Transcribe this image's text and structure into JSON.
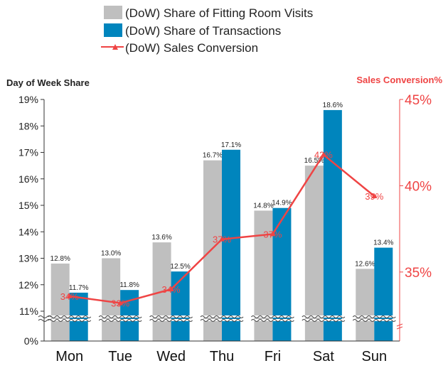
{
  "chart_data": {
    "type": "bar",
    "categories": [
      "Mon",
      "Tue",
      "Wed",
      "Thu",
      "Fri",
      "Sat",
      "Sun"
    ],
    "series": [
      {
        "name": "(DoW) Share of Fitting Room Visits",
        "kind": "bar",
        "axis": "left",
        "color": "#bfbfbf",
        "values": [
          12.8,
          13.0,
          13.6,
          16.7,
          14.8,
          16.5,
          12.6
        ],
        "labels": [
          "12.8%",
          "13.0%",
          "13.6%",
          "16.7%",
          "14.8%",
          "16.5%",
          "12.6%"
        ]
      },
      {
        "name": "(DoW) Share of Transactions",
        "kind": "bar",
        "axis": "left",
        "color": "#0085bd",
        "values": [
          11.7,
          11.8,
          12.5,
          17.1,
          14.9,
          18.6,
          13.4
        ],
        "labels": [
          "11.7%",
          "11.8%",
          "12.5%",
          "17.1%",
          "14.9%",
          "18.6%",
          "13.4%"
        ]
      },
      {
        "name": "(DoW) Sales Conversion",
        "kind": "line",
        "axis": "right",
        "color": "#ef4444",
        "values": [
          33.6,
          33.2,
          34.0,
          36.9,
          37.2,
          41.8,
          39.4
        ],
        "labels": [
          "34%",
          "33%",
          "34%",
          "37%",
          "37%",
          "42%",
          "39%"
        ]
      }
    ],
    "ylabel": "Day of Week Share",
    "ylabel_right": "Sales Conversion%",
    "yticks": [
      "0%",
      "11%",
      "12%",
      "13%",
      "14%",
      "15%",
      "16%",
      "17%",
      "18%",
      "19%"
    ],
    "ylim": [
      10.9,
      19
    ],
    "yaxis_break": true,
    "yticks_right": [
      "35%",
      "40%",
      "45%"
    ],
    "ylim_right": [
      31,
      45
    ],
    "legend_position": "top",
    "grid": false
  }
}
